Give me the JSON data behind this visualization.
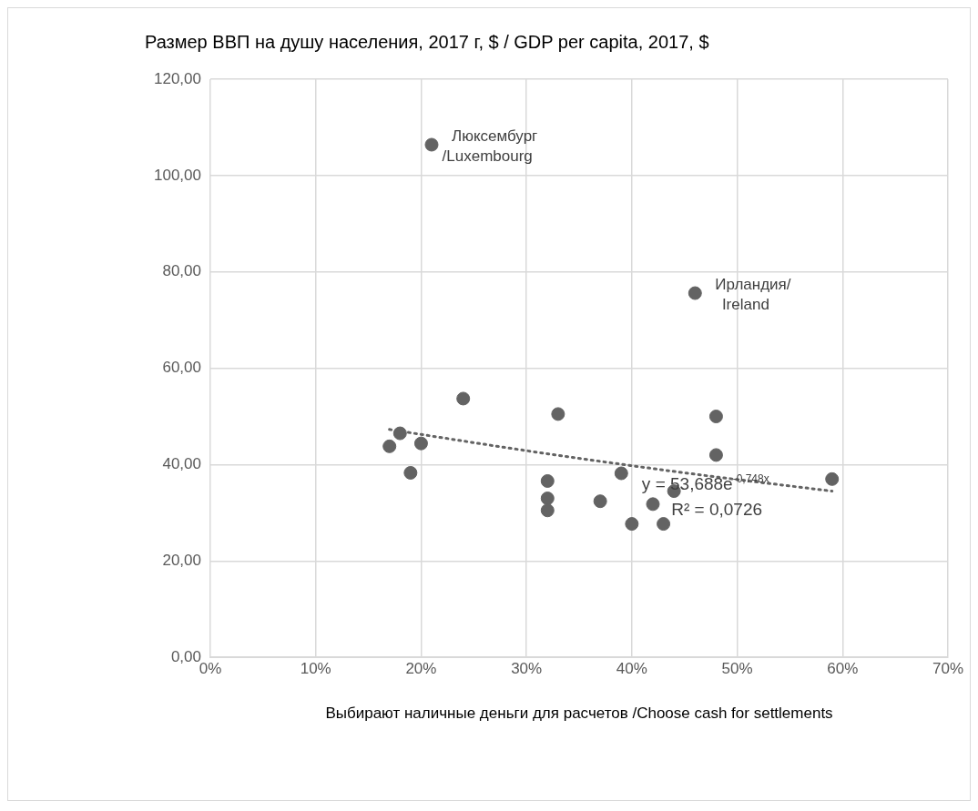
{
  "chart_data": {
    "type": "scatter",
    "title": "Размер ВВП на душу населения, 2017 г, $ / GDP per capita, 2017, $",
    "xlabel": "Выбирают наличные деньги для расчетов /Choose cash for settlements",
    "series": [
      {
        "type": "scatter",
        "color": "#636363",
        "x": [
          17,
          18,
          19,
          20,
          21,
          24,
          32,
          32,
          32,
          33,
          37,
          39,
          40,
          42,
          43,
          44,
          46,
          48,
          48,
          59
        ],
        "values": [
          43.8,
          46.5,
          38.3,
          44.4,
          106.4,
          53.7,
          36.6,
          33.0,
          30.5,
          50.5,
          32.4,
          38.2,
          27.7,
          31.8,
          27.7,
          34.5,
          75.6,
          50.0,
          42.0,
          37.0
        ]
      },
      {
        "type": "line",
        "color": "#636363",
        "line_style": "dotted",
        "marker": "none",
        "x": [
          17,
          30,
          45,
          59
        ],
        "values": [
          47.3,
          42.9,
          38.3,
          34.5
        ]
      }
    ],
    "xlim": [
      0,
      70
    ],
    "xticks": [
      {
        "value": 0,
        "label": "0%"
      },
      {
        "value": 10,
        "label": "10%"
      },
      {
        "value": 20,
        "label": "20%"
      },
      {
        "value": 30,
        "label": "30%"
      },
      {
        "value": 40,
        "label": "40%"
      },
      {
        "value": 50,
        "label": "50%"
      },
      {
        "value": 60,
        "label": "60%"
      },
      {
        "value": 70,
        "label": "70%"
      }
    ],
    "ylim": [
      0,
      120
    ],
    "yticks": [
      {
        "value": 0,
        "label": "0,00"
      },
      {
        "value": 20,
        "label": "20,00"
      },
      {
        "value": 40,
        "label": "40,00"
      },
      {
        "value": 60,
        "label": "60,00"
      },
      {
        "value": 80,
        "label": "80,00"
      },
      {
        "value": 100,
        "label": "100,00"
      },
      {
        "value": 120,
        "label": "120,00"
      }
    ],
    "grid": true,
    "legend": false,
    "marker": "circle",
    "annotations": [
      {
        "text": "Люксембург\n/Luxembourg",
        "x": 21,
        "y": 106.4
      },
      {
        "text": "Ирландия/\nIreland",
        "x": 46,
        "y": 75.6
      },
      "y = 53,688e$^{-0,748x}$",
      "R² = 0,0726"
    ]
  }
}
